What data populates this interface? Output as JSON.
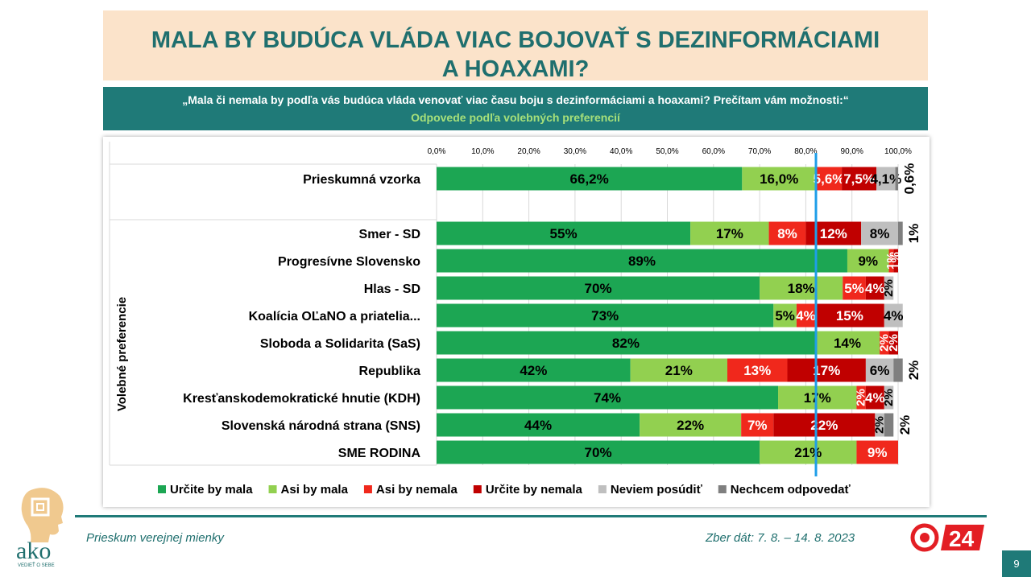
{
  "title_line1": "MALA BY BUDÚCA VLÁDA VIAC BOJOVAŤ S DEZINFORMÁCIAMI",
  "title_line2": "A HOAXAMI?",
  "question": "„Mala či nemala by podľa vás budúca vláda venovať viac času boju s dezinformáciami a hoaxami? Prečítam vám možnosti:“",
  "subtitle": "Odpovede podľa volebných preferencií",
  "footer": {
    "left": "Prieskum verejnej mienky",
    "right": "Zber dát: 7. 8. – 14. 8. 2023",
    "page": "9"
  },
  "logos": {
    "ako": "ako",
    "ako_tagline": "VEDIEŤ O SEBE",
    "tv": "24"
  },
  "chart_data": {
    "type": "bar",
    "orientation": "horizontal",
    "stacked": true,
    "xlim": [
      0,
      100
    ],
    "x_ticks": [
      "0,0%",
      "10,0%",
      "20,0%",
      "30,0%",
      "40,0%",
      "50,0%",
      "60,0%",
      "70,0%",
      "80,0%",
      "90,0%",
      "100,0%"
    ],
    "ylabel": "Volebné preferencie",
    "legend_position": "bottom",
    "reference_line_x": 82.2,
    "categories": [
      "Prieskumná vzorka",
      "Smer - SD",
      "Progresívne Slovensko",
      "Hlas - SD",
      "Koalícia OĽaNO a priatelia...",
      "Sloboda a Solidarita (SaS)",
      "Republika",
      "Kresťanskodemokratické hnutie (KDH)",
      "Slovenská národná strana (SNS)",
      "SME RODINA"
    ],
    "series": [
      {
        "name": "Určite by mala",
        "color": "#1ca653",
        "values": [
          66.2,
          55,
          89,
          70,
          73,
          82,
          42,
          74,
          44,
          70
        ],
        "labels": [
          "66,2%",
          "55%",
          "89%",
          "70%",
          "73%",
          "82%",
          "42%",
          "74%",
          "44%",
          "70%"
        ]
      },
      {
        "name": "Asi by mala",
        "color": "#92d050",
        "values": [
          16.0,
          17,
          9,
          18,
          5,
          14,
          21,
          17,
          22,
          21
        ],
        "labels": [
          "16,0%",
          "17%",
          "9%",
          "18%",
          "5%",
          "14%",
          "21%",
          "17%",
          "22%",
          "21%"
        ]
      },
      {
        "name": "Asi by nemala",
        "color": "#f0281c",
        "values": [
          5.6,
          8,
          1,
          5,
          4,
          2,
          13,
          2,
          7,
          9
        ],
        "labels": [
          "5,6%",
          "8%",
          "1%",
          "5%",
          "4%",
          "2%",
          "13%",
          "2%",
          "7%",
          "9%"
        ]
      },
      {
        "name": "Určite by nemala",
        "color": "#c00000",
        "values": [
          7.5,
          12,
          1,
          4,
          15,
          2,
          17,
          4,
          22,
          0
        ],
        "labels": [
          "7,5%",
          "12%",
          "1%",
          "4%",
          "15%",
          "2%",
          "17%",
          "4%",
          "22%",
          ""
        ]
      },
      {
        "name": "Neviem posúdiť",
        "color": "#bfbfbf",
        "values": [
          4.1,
          8,
          0,
          2,
          4,
          0,
          6,
          2,
          2,
          0
        ],
        "labels": [
          "4,1%",
          "8%",
          "",
          "2%",
          "4%",
          "",
          "6%",
          "2%",
          "2%",
          ""
        ]
      },
      {
        "name": "Nechcem odpovedať",
        "color": "#7f7f7f",
        "values": [
          0.6,
          1,
          0,
          0,
          0,
          0,
          2,
          0,
          2,
          0
        ],
        "labels": [
          "0,6%",
          "1%",
          "",
          "",
          "",
          "",
          "2%",
          "",
          "2%",
          ""
        ]
      }
    ]
  }
}
